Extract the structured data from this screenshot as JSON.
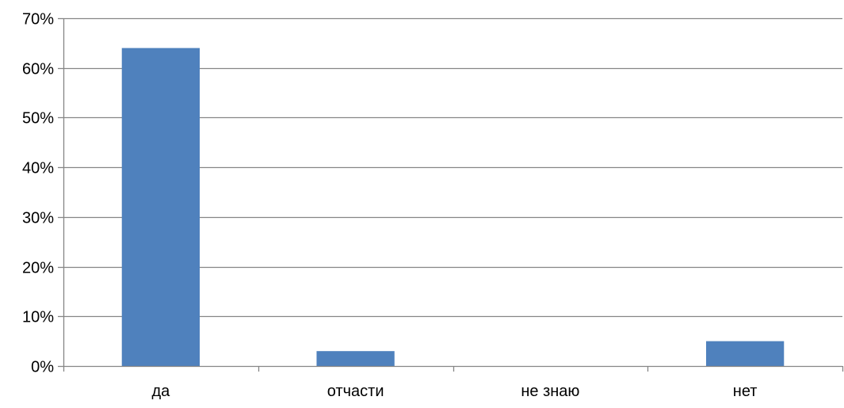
{
  "chart_data": {
    "type": "bar",
    "title": "",
    "xlabel": "",
    "ylabel": "",
    "categories": [
      "да",
      "отчасти",
      "не знаю",
      "нет"
    ],
    "values": [
      0.64,
      0.03,
      0,
      0.05
    ],
    "ylim": [
      0,
      0.7
    ],
    "yticks": [
      0,
      0.1,
      0.2,
      0.3,
      0.4,
      0.5,
      0.6,
      0.7
    ],
    "ytick_labels": [
      "0%",
      "10%",
      "20%",
      "30%",
      "40%",
      "50%",
      "60%",
      "70%"
    ],
    "grid": true,
    "legend": "none",
    "bar_color": "#4F81BD",
    "gridline_color": "#868686",
    "axis_color": "#868686"
  }
}
